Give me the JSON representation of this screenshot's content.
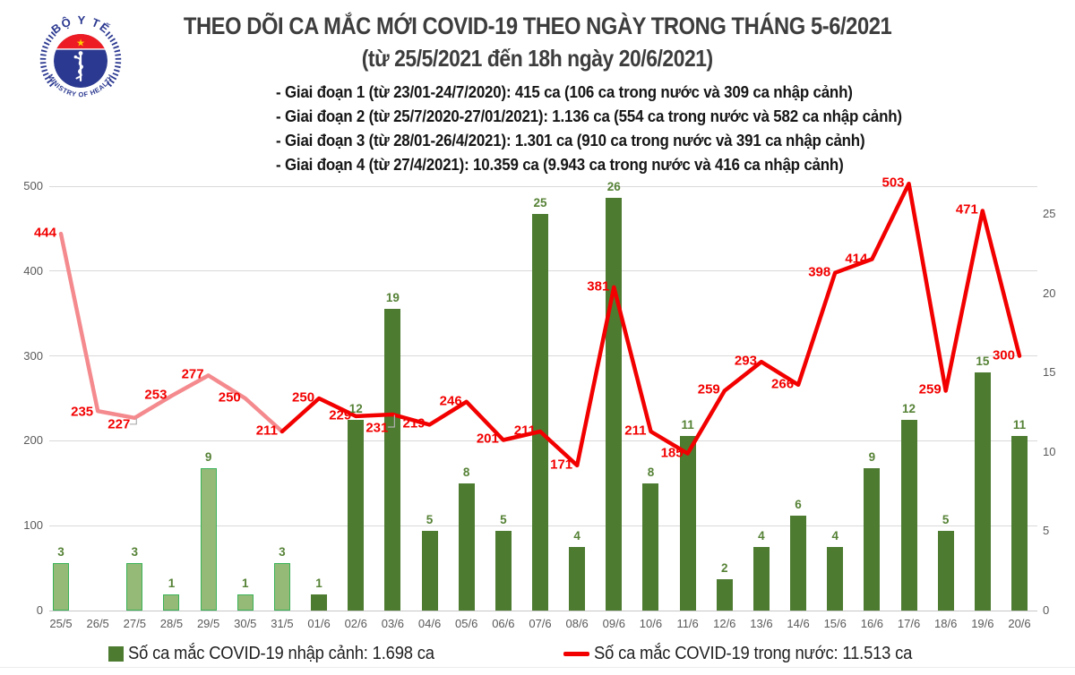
{
  "header": {
    "logo": {
      "top_text": "BỘ Y TẾ",
      "bottom_text": "MINISTRY OF HEALTH",
      "star": "★"
    },
    "title_line1": "THEO DÕI CA MẮC MỚI COVID-19 THEO NGÀY TRONG THÁNG 5-6/2021",
    "title_line2": "(từ 25/5/2021 đến 18h ngày 20/6/2021)"
  },
  "phases": [
    "- Giai đoạn 1 (từ 23/01-24/7/2020): 415 ca (106 ca trong nước và 309 ca nhập cảnh)",
    "- Giai đoạn 2 (từ 25/7/2020-27/01/2021): 1.136 ca (554 ca trong nước và 582 ca nhập cảnh)",
    "- Giai đoạn 3 (từ 28/01-26/4/2021): 1.301 ca (910 ca trong nước và 391 ca nhập cảnh)",
    "- Giai đoạn 4 (từ 27/4/2021): 10.359 ca (9.943 ca trong nước và 416 ca nhập cảnh)"
  ],
  "chart_data": {
    "type": "combo",
    "categories": [
      "25/5",
      "26/5",
      "27/5",
      "28/5",
      "29/5",
      "30/5",
      "31/5",
      "01/6",
      "02/6",
      "03/6",
      "04/6",
      "05/6",
      "06/6",
      "07/6",
      "08/6",
      "09/6",
      "10/6",
      "11/6",
      "12/6",
      "13/6",
      "14/6",
      "15/6",
      "16/6",
      "17/6",
      "18/6",
      "19/6",
      "20/6"
    ],
    "series": [
      {
        "name": "Số ca mắc COVID-19 nhập cảnh",
        "type": "bar",
        "axis": "right",
        "values": [
          3,
          0,
          3,
          1,
          9,
          1,
          3,
          1,
          12,
          19,
          5,
          8,
          5,
          25,
          4,
          26,
          8,
          11,
          2,
          4,
          6,
          4,
          9,
          12,
          5,
          15,
          11
        ],
        "muted_through_category": "31/5"
      },
      {
        "name": "Số ca mắc COVID-19 trong nước",
        "type": "line",
        "axis": "left",
        "values": [
          444,
          235,
          227,
          253,
          277,
          250,
          211,
          250,
          229,
          231,
          219,
          246,
          201,
          211,
          171,
          381,
          211,
          185,
          259,
          293,
          266,
          398,
          414,
          503,
          259,
          471,
          300
        ],
        "faded_through_category": "31/5"
      }
    ],
    "left_axis": {
      "ticks": [
        0,
        100,
        200,
        300,
        400,
        500
      ],
      "max": 500
    },
    "right_axis": {
      "ticks": [
        0,
        5,
        10,
        15,
        20,
        25
      ]
    },
    "grid": "horizontal",
    "legend_position": "bottom",
    "title": "THEO DÕI CA MẮC MỚI COVID-19 THEO NGÀY TRONG THÁNG 5-6/2021"
  },
  "legend": {
    "imported_label": "Số ca mắc COVID-19 nhập cảnh: 1.698 ca",
    "domestic_label": "Số ca mắc COVID-19 trong nước: 11.513 ca"
  },
  "colors": {
    "bar_june": "#4d7c31",
    "bar_may_fill": "#95ba78",
    "bar_may_border": "#3ab257",
    "line_red": "#f20000",
    "line_red_faded": "#f48a8e",
    "value_label_red": "#f20000",
    "value_label_green": "#568236",
    "axis_text": "#595959",
    "gridline": "#d9d9d9",
    "title_text": "#3d3d3d",
    "logo_blue": "#2b3990",
    "logo_red": "#ed1c24",
    "star_yellow": "#ffd100"
  }
}
